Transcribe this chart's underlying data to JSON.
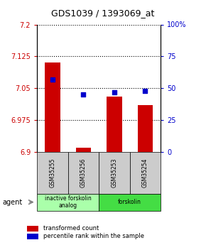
{
  "title": "GDS1039 / 1393069_at",
  "samples": [
    "GSM35255",
    "GSM35256",
    "GSM35253",
    "GSM35254"
  ],
  "bar_values": [
    7.11,
    6.91,
    7.03,
    7.01
  ],
  "bar_base": 6.9,
  "dot_percentiles": [
    57,
    45,
    47,
    48
  ],
  "ylim_left": [
    6.9,
    7.2
  ],
  "ylim_right": [
    0,
    100
  ],
  "yticks_left": [
    6.9,
    6.975,
    7.05,
    7.125,
    7.2
  ],
  "ytick_labels_left": [
    "6.9",
    "6.975",
    "7.05",
    "7.125",
    "7.2"
  ],
  "yticks_right": [
    0,
    25,
    50,
    75,
    100
  ],
  "ytick_labels_right": [
    "0",
    "25",
    "50",
    "75",
    "100%"
  ],
  "bar_color": "#cc0000",
  "dot_color": "#0000cc",
  "groups": [
    {
      "label": "inactive forskolin\nanalog",
      "samples": [
        0,
        1
      ],
      "color": "#aaffaa"
    },
    {
      "label": "forskolin",
      "samples": [
        2,
        3
      ],
      "color": "#44dd44"
    }
  ],
  "agent_label": "agent",
  "legend_bar_label": "transformed count",
  "legend_dot_label": "percentile rank within the sample",
  "bar_width": 0.5,
  "sample_bg": "#cccccc"
}
